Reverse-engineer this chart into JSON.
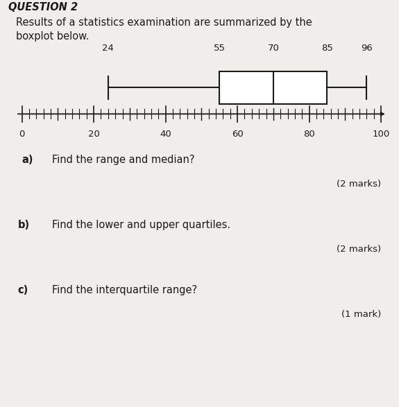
{
  "title": "QUESTION 2",
  "intro_line1": "Results of a statistics examination are summarized by the",
  "intro_line2": "boxplot below.",
  "whisker_min": 24,
  "q1": 55,
  "median": 70,
  "q3": 85,
  "whisker_max": 96,
  "axis_min": 0,
  "axis_max": 100,
  "axis_ticks": [
    0,
    20,
    40,
    60,
    80,
    100
  ],
  "value_labels": [
    24,
    55,
    70,
    85,
    96
  ],
  "questions": [
    {
      "label": "a)",
      "text": "Find the range and median?",
      "marks": "(2 marks)"
    },
    {
      "label": "b)",
      "text": "Find the lower and upper quartiles.",
      "marks": "(2 marks)"
    },
    {
      "label": "c)",
      "text": "Find the interquartile range?",
      "marks": "(1 mark)"
    }
  ],
  "bg_color": "#f0eeea",
  "text_color": "#1a1a1a",
  "box_color": "#ffffff",
  "box_edge_color": "#1a1a1a"
}
